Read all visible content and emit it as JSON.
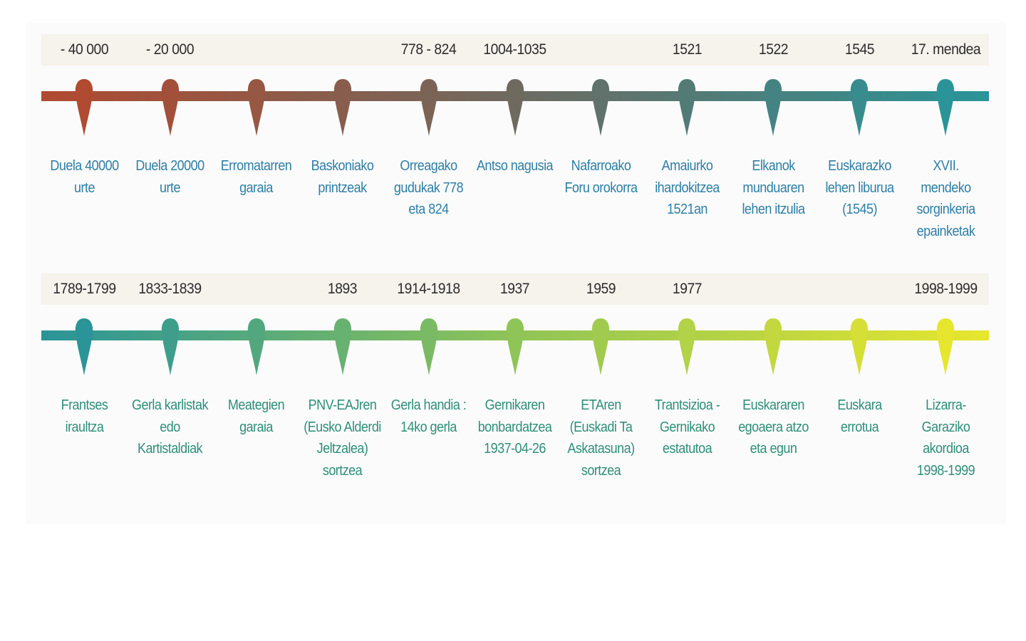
{
  "colors": {
    "row1_start": "#b04a30",
    "row1_mid": "#6e6a60",
    "row1_end": "#2a9498",
    "row2_start": "#2a9498",
    "row2_mid": "#8fc457",
    "row2_end": "#e6e62e",
    "label_row1": "#2e7fa6",
    "label_row2": "#2f8f7a",
    "date_band": "#f6f2ec"
  },
  "rows": [
    {
      "events": [
        {
          "date": "- 40 000",
          "label": "Duela 40000 urte"
        },
        {
          "date": "- 20 000",
          "label": "Duela 20000 urte"
        },
        {
          "date": "",
          "label": "Erromatarren garaia"
        },
        {
          "date": "",
          "label": "Baskoniako printzeak"
        },
        {
          "date": "778 - 824",
          "label": "Orreagako gudukak 778 eta 824"
        },
        {
          "date": "1004-1035",
          "label": "Antso nagusia"
        },
        {
          "date": "",
          "label": "Nafarroako Foru orokorra"
        },
        {
          "date": "1521",
          "label": "Amaiurko ihardokitzea 1521an"
        },
        {
          "date": "1522",
          "label": "Elkanok munduaren lehen itzulia"
        },
        {
          "date": "1545",
          "label": "Euskarazko lehen liburua (1545)"
        },
        {
          "date": "17. mendea",
          "label": "XVII. mendeko sorginkeria epainketak"
        }
      ]
    },
    {
      "events": [
        {
          "date": "1789-1799",
          "label": "Frantses iraultza"
        },
        {
          "date": "1833-1839",
          "label": "Gerla karlistak edo Kartistaldiak"
        },
        {
          "date": "",
          "label": "Meategien garaia"
        },
        {
          "date": "1893",
          "label": "PNV-EAJren (Eusko Alderdi Jeltzalea) sortzea"
        },
        {
          "date": "1914-1918",
          "label": "Gerla handia : 14ko gerla"
        },
        {
          "date": "1937",
          "label": "Gernikaren bonbardatzea 1937-04-26"
        },
        {
          "date": "1959",
          "label": "ETAren (Euskadi Ta Askatasuna) sortzea"
        },
        {
          "date": "1977",
          "label": "Trantsizioa - Gernikako estatutoa"
        },
        {
          "date": "",
          "label": "Euskararen egoaera atzo eta egun"
        },
        {
          "date": "",
          "label": "Euskara errotua"
        },
        {
          "date": "1998-1999",
          "label": "Lizarra-Garaziko akordioa 1998-1999"
        }
      ]
    }
  ]
}
